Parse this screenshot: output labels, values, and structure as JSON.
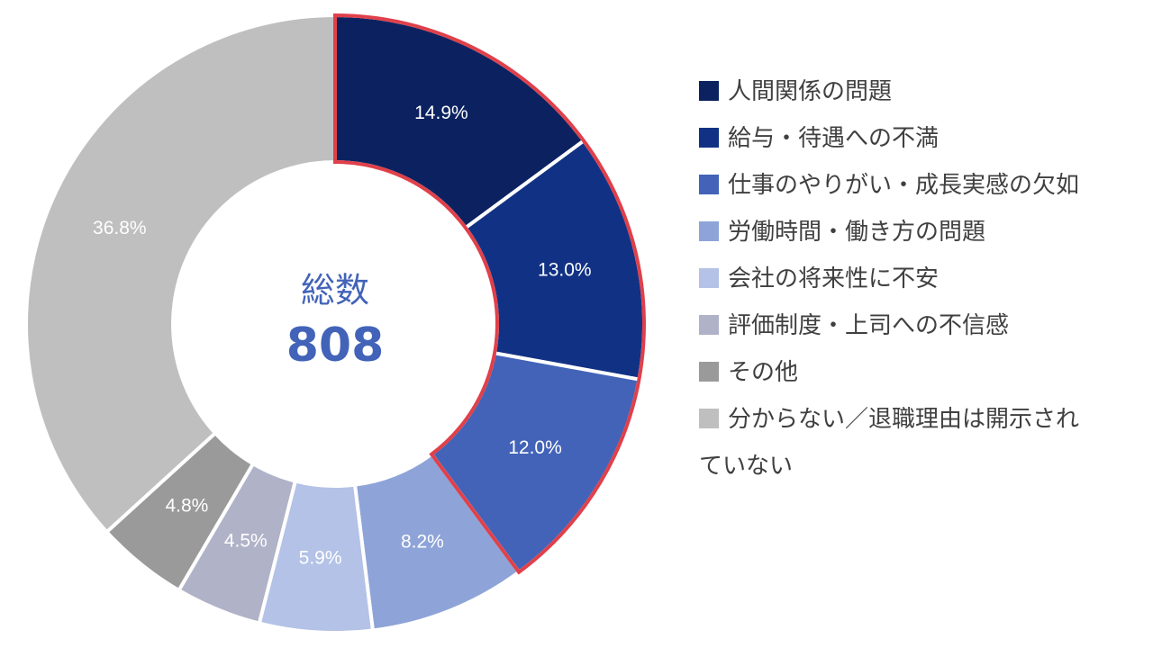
{
  "chart_data": {
    "type": "pie",
    "categories": [
      "人間関係の問題",
      "給与・待遇への不満",
      "仕事のやりがい・成長実感の欠如",
      "労働時間・働き方の問題",
      "会社の将来性に不安",
      "評価制度・上司への不信感",
      "その他",
      "分からない／退職理由は開示されていない"
    ],
    "values": [
      14.9,
      13.0,
      12.0,
      8.2,
      5.9,
      4.5,
      4.8,
      36.8
    ],
    "value_labels": [
      "14.9%",
      "13.0%",
      "12.0%",
      "8.2%",
      "5.9%",
      "4.5%",
      "4.8%",
      "36.8%"
    ],
    "colors": [
      "#0c2260",
      "#113284",
      "#4263b8",
      "#8ea4d8",
      "#b3c2e6",
      "#b0b2c8",
      "#9a9a9a",
      "#bfbfbf"
    ],
    "highlight": {
      "indices": [
        0,
        1,
        2
      ],
      "color": "#e0404a"
    },
    "center_title": "総数",
    "center_value": "808",
    "legend_position": "right",
    "donut": true
  }
}
